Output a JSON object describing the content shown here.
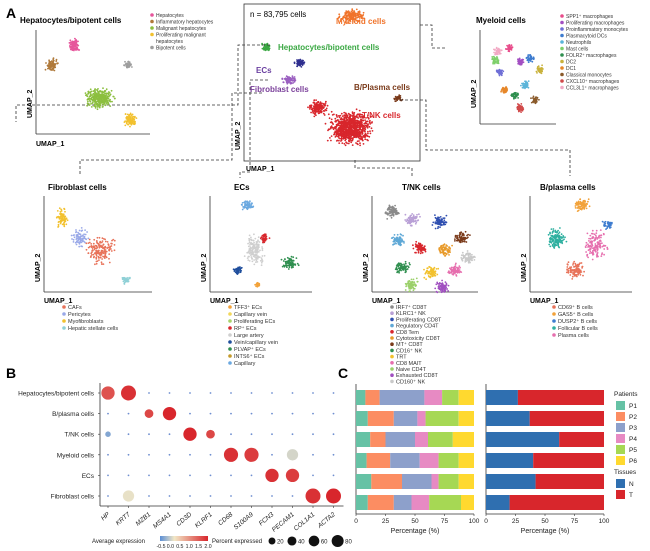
{
  "panel_labels": {
    "a": "A",
    "b": "B",
    "c": "C"
  },
  "panel_a": {
    "main": {
      "n_label": "n = 83,795 cells",
      "labels": [
        {
          "text": "Myeloid cells",
          "color": "#f0732a"
        },
        {
          "text": "Hepatocytes/bipotent cells",
          "color": "#3aa843"
        },
        {
          "text": "ECs",
          "color": "#6a3fa0"
        },
        {
          "text": "Fibroblast cells",
          "color": "#7a3f9a"
        },
        {
          "text": "B/Plasma cells",
          "color": "#7a3a1a"
        },
        {
          "text": "T/NK cells",
          "color": "#d8262c"
        }
      ],
      "xlabel": "UMAP_1",
      "ylabel": "UMAP_2"
    },
    "hep": {
      "title": "Hepatocytes/bipotent cells",
      "xlabel": "UMAP_1",
      "ylabel": "UMAP_2",
      "legend": [
        {
          "text": "Hepatocytes",
          "color": "#e6559b"
        },
        {
          "text": "Inflammatory hepatocytes",
          "color": "#b07a3b"
        },
        {
          "text": "Malignant hepatocytes",
          "color": "#8cbf3f"
        },
        {
          "text": "Proliferating malignant",
          "color": "#f2c12e"
        },
        {
          "text": "hepatocytes",
          "color": ""
        },
        {
          "text": "Bipotent cells",
          "color": "#9e9e9e"
        }
      ]
    },
    "mye": {
      "title": "Myeloid cells",
      "xlabel": "",
      "ylabel": "UMAP_2",
      "legend": [
        {
          "text": "SPP1⁺ macrophages",
          "color": "#e84c8b"
        },
        {
          "text": "Proliferating macrophages",
          "color": "#a34fc2"
        },
        {
          "text": "Proinflammatory monocytes",
          "color": "#6f6fd6"
        },
        {
          "text": "Plasmacytoid DCs",
          "color": "#3e7ccf"
        },
        {
          "text": "Neutrophils",
          "color": "#59b4d9"
        },
        {
          "text": "Mast cells",
          "color": "#7ecf6a"
        },
        {
          "text": "FOLR2⁺ macrophages",
          "color": "#2f8f4f"
        },
        {
          "text": "DC2",
          "color": "#c9b23c"
        },
        {
          "text": "DC1",
          "color": "#e6872a"
        },
        {
          "text": "Classical monocytes",
          "color": "#8a5a2b"
        },
        {
          "text": "CXCL10⁺ macrophages",
          "color": "#d14a4a"
        },
        {
          "text": "CCL3L1⁺ macrophages",
          "color": "#f2a9c4"
        }
      ]
    },
    "fib": {
      "title": "Fibroblast cells",
      "xlabel": "UMAP_1",
      "ylabel": "UMAP_2",
      "legend": [
        {
          "text": "CAFs",
          "color": "#e8735a"
        },
        {
          "text": "Pericytes",
          "color": "#9aa9e8"
        },
        {
          "text": "Myofibroblasts",
          "color": "#f2c12e"
        },
        {
          "text": "Hepatic stellate cells",
          "color": "#8fd0d6"
        }
      ]
    },
    "ecs": {
      "title": "ECs",
      "xlabel": "UMAP_1",
      "ylabel": "UMAP_2",
      "legend": [
        {
          "text": "TFF3⁺ ECs",
          "color": "#f2a23a"
        },
        {
          "text": "Capillary vein",
          "color": "#f2d75a"
        },
        {
          "text": "Proliferating ECs",
          "color": "#a8d36a"
        },
        {
          "text": "RP⁺ ECs",
          "color": "#d8262c"
        },
        {
          "text": "Large artery",
          "color": "#cfcfcf"
        },
        {
          "text": "Vein/capillary vein",
          "color": "#1f4e9c"
        },
        {
          "text": "PLVAP⁺ ECs",
          "color": "#2f8f4f"
        },
        {
          "text": "INTS6⁺ ECs",
          "color": "#c49a2b"
        },
        {
          "text": "Capillary",
          "color": "#6aa8e0"
        }
      ]
    },
    "tnk": {
      "title": "T/NK cells",
      "xlabel": "UMAP_1",
      "ylabel": "UMAP_2",
      "legend": [
        {
          "text": "IRF7⁺ CD8T",
          "color": "#8a8a8a"
        },
        {
          "text": "KLRC1⁺ NK",
          "color": "#b9a0d6"
        },
        {
          "text": "Proliferating CD8T",
          "color": "#2f4fb0"
        },
        {
          "text": "Regulatory CD4T",
          "color": "#5fa8d6"
        },
        {
          "text": "CD8 Tem",
          "color": "#d8262c"
        },
        {
          "text": "Cytotoxicity CD8T",
          "color": "#e89a2a"
        },
        {
          "text": "MT⁺ CD8T",
          "color": "#7a3a1a"
        },
        {
          "text": "CD16⁺ NK",
          "color": "#2f8f4f"
        },
        {
          "text": "TRT",
          "color": "#f2c12e"
        },
        {
          "text": "CD8 MAIT",
          "color": "#e66fae"
        },
        {
          "text": "Naive CD4T",
          "color": "#9bd06a"
        },
        {
          "text": "Exhausted CD8T",
          "color": "#a04fc0"
        },
        {
          "text": "CD160⁺ NK",
          "color": "#c9c9c9"
        }
      ]
    },
    "bpl": {
      "title": "B/plasma cells",
      "xlabel": "UMAP_1",
      "ylabel": "UMAP_2",
      "legend": [
        {
          "text": "CD69⁺ B cells",
          "color": "#e8735a"
        },
        {
          "text": "GAS5⁺ B cells",
          "color": "#f2a23a"
        },
        {
          "text": "DUSP2⁺ B cells",
          "color": "#3e7ccf"
        },
        {
          "text": "Follicular B cells",
          "color": "#2fb0a0"
        },
        {
          "text": "Plasma cells",
          "color": "#e66fae"
        }
      ]
    }
  },
  "chart_data": [
    {
      "type": "dot",
      "title": "",
      "rows": [
        "Hepatocytes/bipotent cells",
        "B/plasma cells",
        "T/NK cells",
        "Myeloid cells",
        "ECs",
        "Fibroblast cells"
      ],
      "genes": [
        "HP",
        "KRT7",
        "MZB1",
        "MS4A1",
        "CD3D",
        "KLRF1",
        "CD68",
        "S100A9",
        "FCN3",
        "PECAM1",
        "COL1A1",
        "ACTA2"
      ],
      "avg_expression": [
        [
          1.6,
          1.9,
          -0.5,
          -0.5,
          -0.5,
          -0.5,
          -0.5,
          -0.5,
          -0.5,
          -0.5,
          -0.5,
          -0.5
        ],
        [
          -0.5,
          -0.5,
          1.7,
          2.0,
          -0.5,
          -0.5,
          -0.5,
          -0.5,
          -0.5,
          -0.5,
          -0.5,
          -0.5
        ],
        [
          -0.3,
          -0.5,
          -0.5,
          -0.5,
          2.0,
          1.7,
          -0.5,
          -0.5,
          -0.5,
          -0.5,
          -0.5,
          -0.5
        ],
        [
          -0.5,
          -0.5,
          -0.5,
          -0.5,
          -0.5,
          -0.5,
          1.9,
          1.8,
          -0.5,
          0.1,
          -0.5,
          -0.5
        ],
        [
          -0.5,
          -0.5,
          -0.5,
          -0.5,
          -0.5,
          -0.5,
          -0.5,
          -0.5,
          1.9,
          1.8,
          -0.5,
          -0.5
        ],
        [
          -0.5,
          0.2,
          -0.5,
          -0.5,
          -0.5,
          -0.5,
          -0.5,
          -0.5,
          -0.5,
          -0.5,
          1.9,
          2.0
        ]
      ],
      "pct_expressed": [
        [
          60,
          80,
          0,
          0,
          0,
          0,
          0,
          0,
          0,
          0,
          0,
          0
        ],
        [
          0,
          0,
          20,
          60,
          0,
          0,
          0,
          0,
          0,
          0,
          0,
          0
        ],
        [
          5,
          0,
          0,
          0,
          60,
          20,
          0,
          0,
          0,
          0,
          0,
          0
        ],
        [
          0,
          0,
          0,
          0,
          0,
          0,
          70,
          70,
          0,
          40,
          0,
          0
        ],
        [
          0,
          0,
          0,
          0,
          0,
          0,
          0,
          0,
          60,
          60,
          0,
          0
        ],
        [
          0,
          40,
          0,
          0,
          0,
          0,
          0,
          0,
          0,
          0,
          80,
          80
        ]
      ],
      "color_legend": {
        "title": "Average expression",
        "ticks": [
          "-0.5",
          "0.0",
          "0.5",
          "1.0",
          "1.5",
          "2.0"
        ],
        "low": "#5b8fd6",
        "mid": "#f2e7c6",
        "high": "#d8262c"
      },
      "size_legend": {
        "title": "Percent expressed",
        "values": [
          20,
          40,
          60,
          80
        ]
      }
    },
    {
      "type": "stacked_bar_horizontal",
      "title": "",
      "xlabel": "Percentage (%)",
      "xticks": [
        0,
        25,
        50,
        75,
        100
      ],
      "rows": [
        "Hepatocytes/bipotent cells",
        "B/plasma cells",
        "T/NK cells",
        "Myeloid cells",
        "ECs",
        "Fibroblast cells"
      ],
      "series": [
        {
          "name": "P1",
          "color": "#66c2a5",
          "values": [
            8,
            10,
            12,
            9,
            13,
            10
          ]
        },
        {
          "name": "P2",
          "color": "#fc8d62",
          "values": [
            12,
            22,
            13,
            20,
            26,
            22
          ]
        },
        {
          "name": "P3",
          "color": "#8da0cb",
          "values": [
            38,
            20,
            25,
            25,
            25,
            15
          ]
        },
        {
          "name": "P4",
          "color": "#e78ac3",
          "values": [
            15,
            7,
            11,
            16,
            6,
            15
          ]
        },
        {
          "name": "P5",
          "color": "#a6d854",
          "values": [
            14,
            28,
            21,
            17,
            17,
            27
          ]
        },
        {
          "name": "P6",
          "color": "#ffd92f",
          "values": [
            13,
            13,
            18,
            13,
            13,
            11
          ]
        }
      ],
      "legend_title": "Patients"
    },
    {
      "type": "stacked_bar_horizontal",
      "title": "",
      "xlabel": "Percentage (%)",
      "xticks": [
        0,
        25,
        50,
        75,
        100
      ],
      "rows": [
        "Hepatocytes/bipotent cells",
        "B/plasma cells",
        "T/NK cells",
        "Myeloid cells",
        "ECs",
        "Fibroblast cells"
      ],
      "series": [
        {
          "name": "N",
          "color": "#2f6fb0",
          "values": [
            27,
            37,
            62,
            40,
            42,
            20
          ]
        },
        {
          "name": "T",
          "color": "#d8262c",
          "values": [
            73,
            63,
            38,
            60,
            58,
            80
          ]
        }
      ],
      "legend_title": "Tissues"
    }
  ]
}
